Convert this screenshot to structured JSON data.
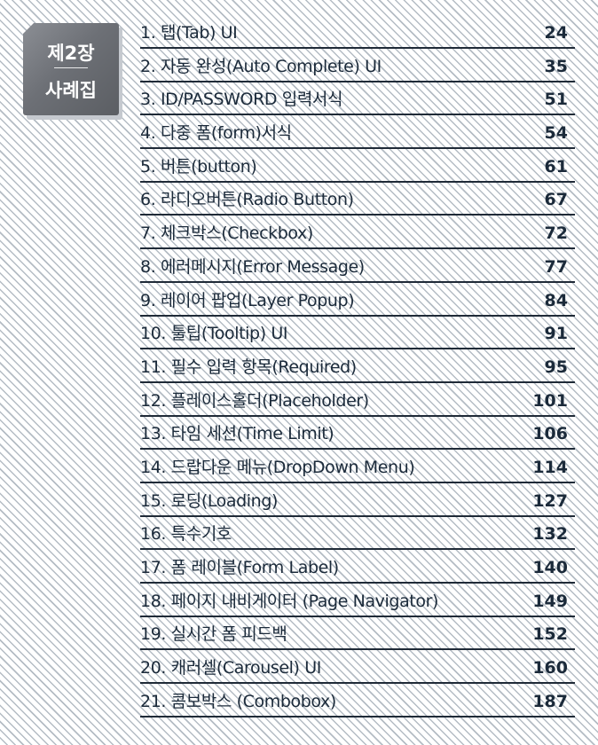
{
  "badge": {
    "line1": "제2장",
    "line2": "사례집"
  },
  "toc": [
    {
      "title": "1. 탭(Tab) UI",
      "page": "24"
    },
    {
      "title": "2. 자동 완성(Auto Complete) UI",
      "page": "35"
    },
    {
      "title": "3. ID/PASSWORD 입력서식",
      "page": "51"
    },
    {
      "title": "4. 다중 폼(form)서식",
      "page": "54"
    },
    {
      "title": "5. 버튼(button)",
      "page": "61"
    },
    {
      "title": "6. 라디오버튼(Radio Button)",
      "page": "67"
    },
    {
      "title": "7. 체크박스(Checkbox)",
      "page": "72"
    },
    {
      "title": "8. 에러메시지(Error Message)",
      "page": "77"
    },
    {
      "title": "9. 레이어 팝업(Layer Popup)",
      "page": "84"
    },
    {
      "title": "10. 툴팁(Tooltip) UI",
      "page": "91"
    },
    {
      "title": "11. 필수 입력 항목(Required)",
      "page": "95"
    },
    {
      "title": "12. 플레이스홀더(Placeholder)",
      "page": "101"
    },
    {
      "title": "13. 타임 세션(Time Limit)",
      "page": "106"
    },
    {
      "title": "14. 드랍다운 메뉴(DropDown Menu)",
      "page": "114"
    },
    {
      "title": "15. 로딩(Loading)",
      "page": "127"
    },
    {
      "title": "16. 특수기호",
      "page": "132"
    },
    {
      "title": "17. 폼 레이블(Form Label)",
      "page": "140"
    },
    {
      "title": "18. 페이지 내비게이터 (Page Navigator)",
      "page": "149"
    },
    {
      "title": "19. 실시간 폼 피드백",
      "page": "152"
    },
    {
      "title": "20. 캐러셀(Carousel) UI",
      "page": "160"
    },
    {
      "title": "21. 콤보박스 (Combobox)",
      "page": "187"
    }
  ]
}
